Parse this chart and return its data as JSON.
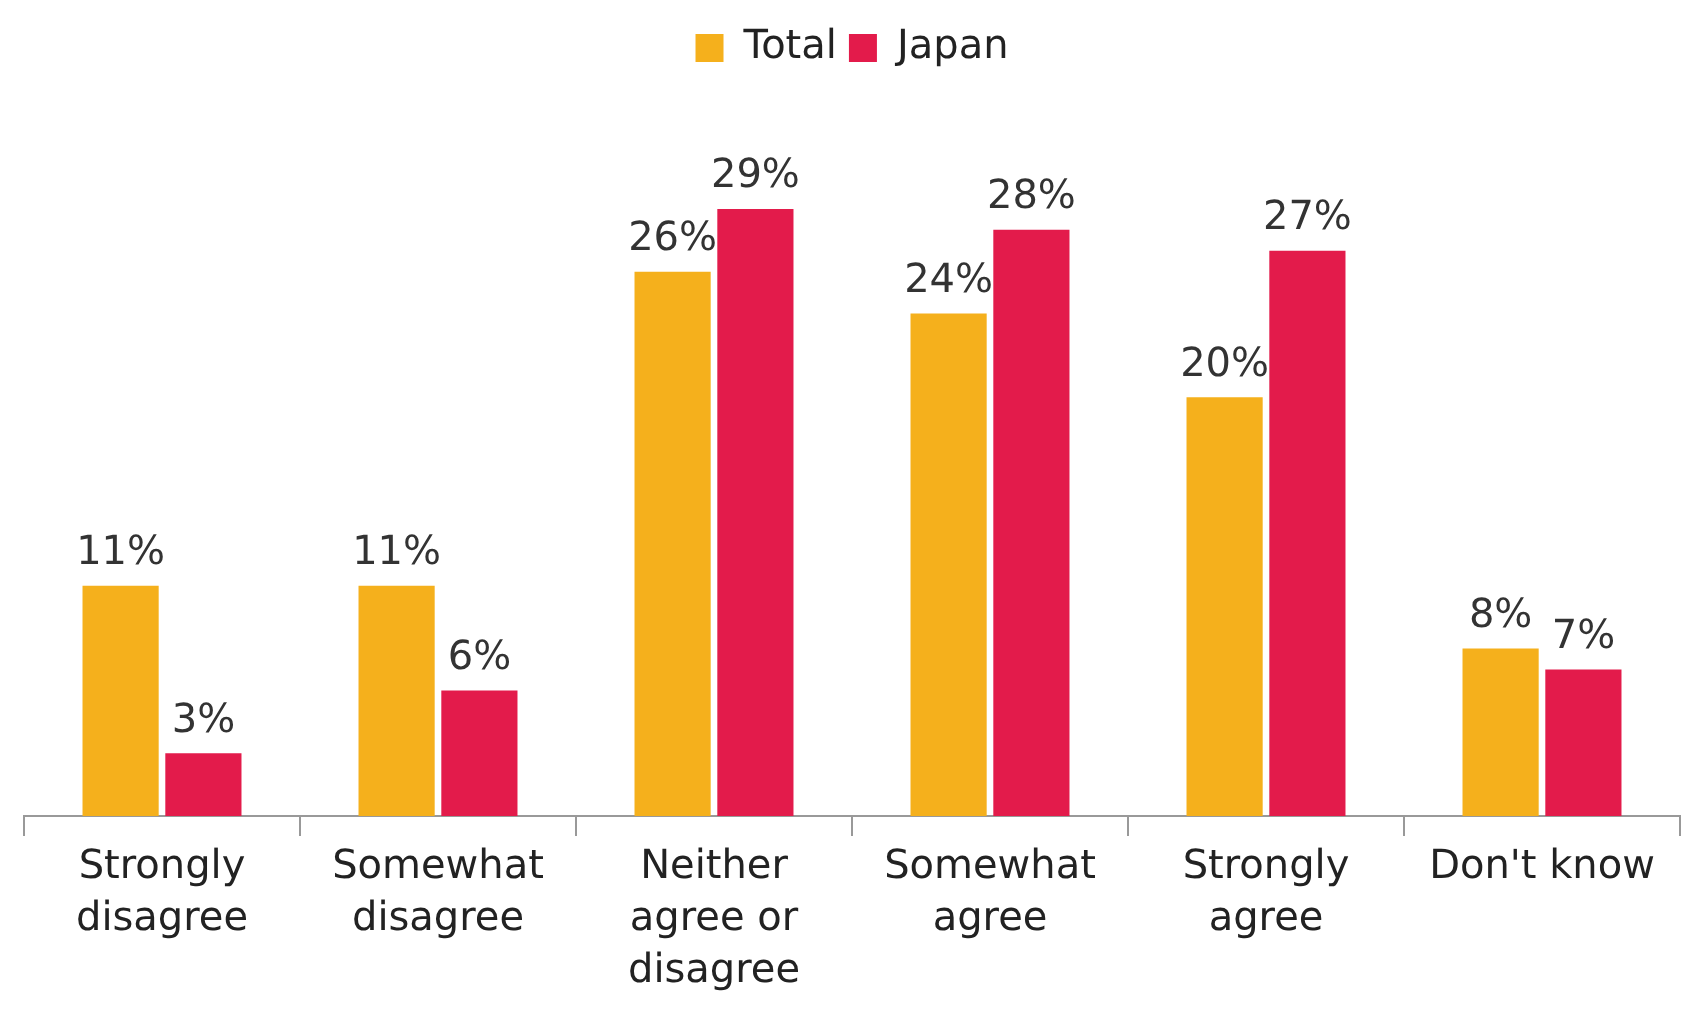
{
  "chart_data": {
    "type": "bar",
    "categories": [
      "Strongly disagree",
      "Somewhat disagree",
      "Neither agree or disagree",
      "Somewhat agree",
      "Strongly agree",
      "Don't know"
    ],
    "series": [
      {
        "name": "Total",
        "color": "#f5b01c",
        "values": [
          11,
          11,
          26,
          24,
          20,
          8
        ],
        "value_labels": [
          "11%",
          "11%",
          "26%",
          "24%",
          "20%",
          "8%"
        ]
      },
      {
        "name": "Japan",
        "color": "#e31b4b",
        "values": [
          3,
          6,
          29,
          28,
          27,
          7
        ],
        "value_labels": [
          "3%",
          "6%",
          "29%",
          "28%",
          "27%",
          "7%"
        ]
      }
    ],
    "legend": "top",
    "grid": false
  }
}
